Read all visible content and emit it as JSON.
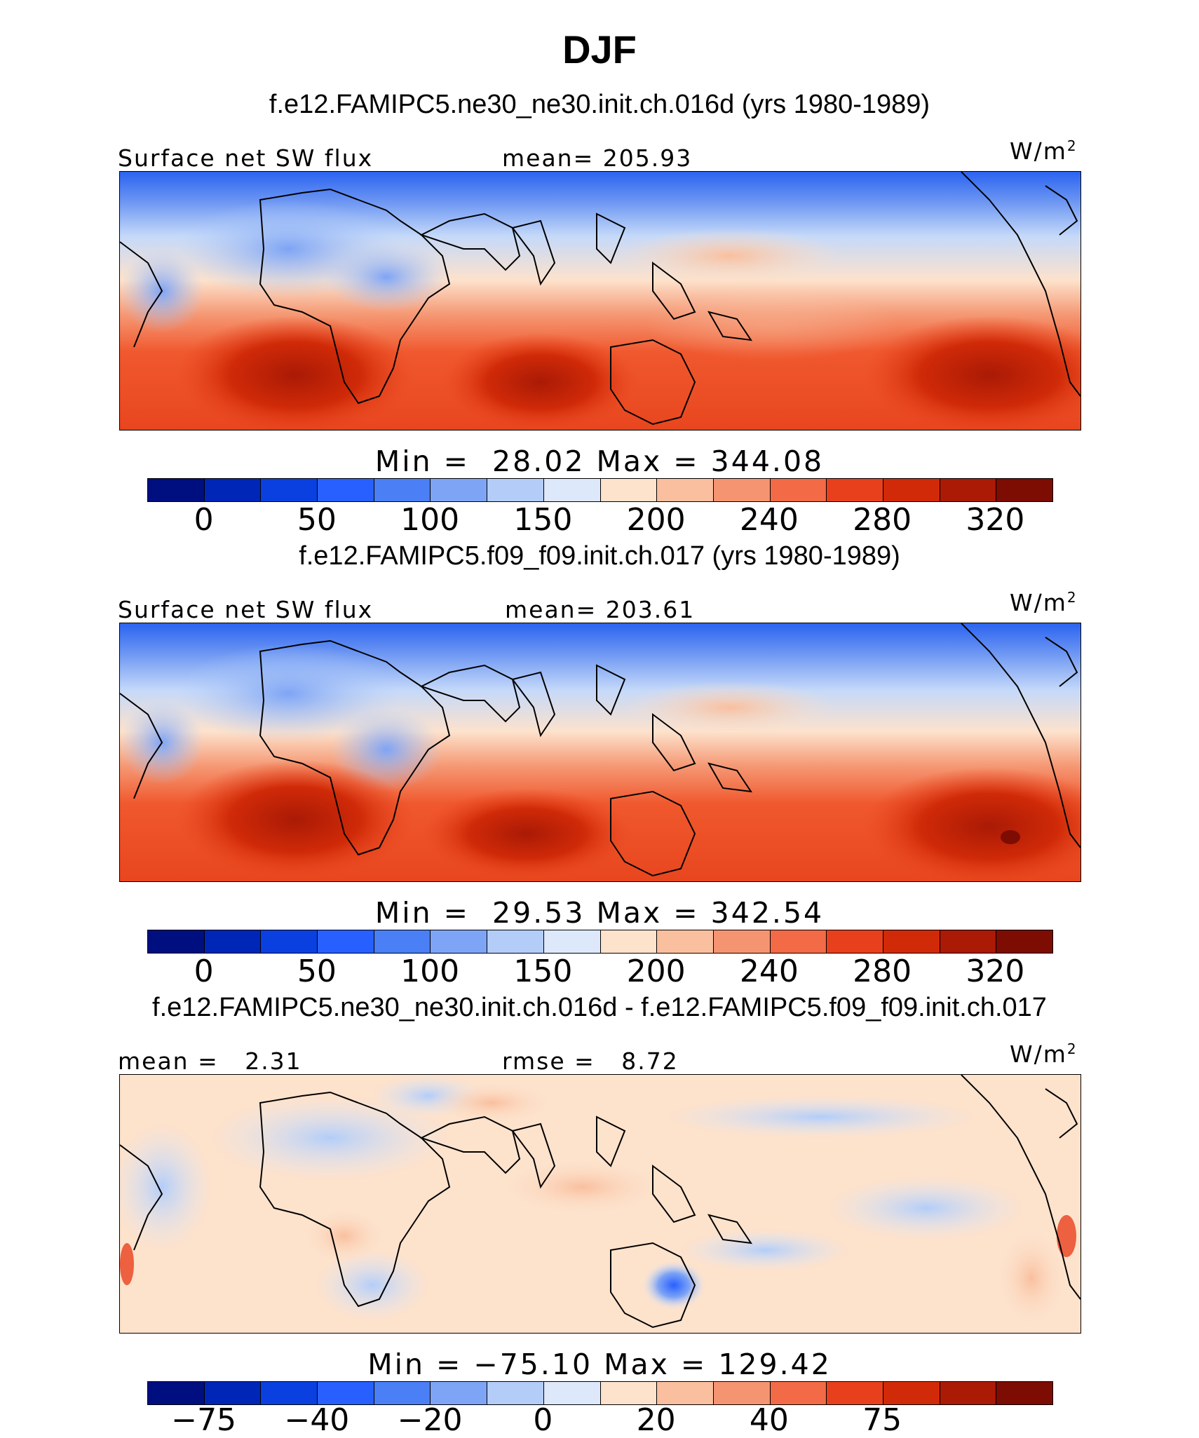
{
  "title": "DJF",
  "panels": [
    {
      "subtitle": "f.e12.FAMIPC5.ne30_ne30.init.ch.016d (yrs 1980-1989)",
      "left_label": "Surface net SW flux",
      "center_label": "mean= 205.93",
      "units": "W/m",
      "units_sup": "2",
      "minmax": "Min =  28.02 Max = 344.08",
      "min": 28.02,
      "max": 344.08,
      "mean": 205.93,
      "colorbar_ticks": [
        "0",
        "50",
        "100",
        "150",
        "200",
        "240",
        "280",
        "320"
      ],
      "colorbar_colors": [
        "#000f80",
        "#0026b8",
        "#0a40e0",
        "#2760ff",
        "#4a7ff5",
        "#7ea4f5",
        "#b3cdf8",
        "#dde8fb",
        "#fde2cc",
        "#f9bf9e",
        "#f59470",
        "#f26a46",
        "#e8401d",
        "#d02a08",
        "#aa1a05",
        "#7d0c03"
      ]
    },
    {
      "subtitle": "f.e12.FAMIPC5.f09_f09.init.ch.017 (yrs 1980-1989)",
      "left_label": "Surface net SW flux",
      "center_label": "mean= 203.61",
      "units": "W/m",
      "units_sup": "2",
      "minmax": "Min =  29.53 Max = 342.54",
      "min": 29.53,
      "max": 342.54,
      "mean": 203.61,
      "colorbar_ticks": [
        "0",
        "50",
        "100",
        "150",
        "200",
        "240",
        "280",
        "320"
      ],
      "colorbar_colors": [
        "#000f80",
        "#0026b8",
        "#0a40e0",
        "#2760ff",
        "#4a7ff5",
        "#7ea4f5",
        "#b3cdf8",
        "#dde8fb",
        "#fde2cc",
        "#f9bf9e",
        "#f59470",
        "#f26a46",
        "#e8401d",
        "#d02a08",
        "#aa1a05",
        "#7d0c03"
      ]
    },
    {
      "subtitle": "f.e12.FAMIPC5.ne30_ne30.init.ch.016d - f.e12.FAMIPC5.f09_f09.init.ch.017",
      "left_label": "mean =   2.31",
      "center_label": "rmse =   8.72",
      "units": "W/m",
      "units_sup": "2",
      "minmax": "Min = −75.10 Max = 129.42",
      "min": -75.1,
      "max": 129.42,
      "mean": 2.31,
      "rmse": 8.72,
      "colorbar_ticks": [
        "−75",
        "−40",
        "−20",
        "0",
        "20",
        "40",
        "75"
      ],
      "colorbar_colors": [
        "#000f80",
        "#0026b8",
        "#0a40e0",
        "#2760ff",
        "#4a7ff5",
        "#7ea4f5",
        "#b3cdf8",
        "#dde8fb",
        "#fde2cc",
        "#f9bf9e",
        "#f59470",
        "#f26a46",
        "#e8401d",
        "#d02a08",
        "#aa1a05",
        "#7d0c03"
      ]
    }
  ]
}
